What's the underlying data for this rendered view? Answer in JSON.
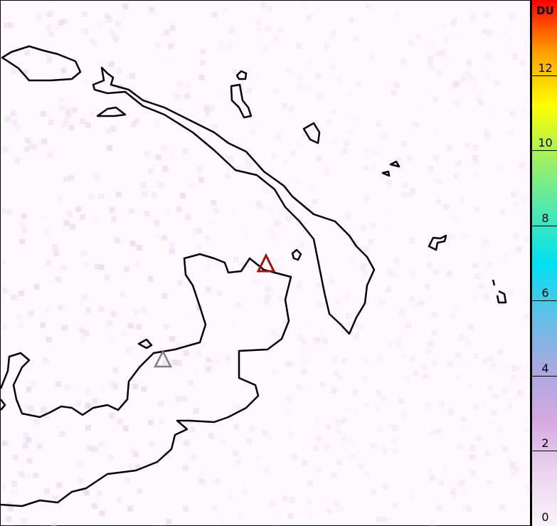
{
  "colorbar": {
    "unit": "DU",
    "min": 0,
    "max": 14,
    "ticks": [
      "0",
      "2",
      "4",
      "6",
      "8",
      "10",
      "12"
    ],
    "colors": [
      "#faf3fa",
      "#ead6ee",
      "#d6a8e0",
      "#a8a8e0",
      "#60c0e8",
      "#00e0f0",
      "#50e8b0",
      "#a0f060",
      "#ffff00",
      "#ffa000",
      "#ff0000"
    ]
  },
  "markers": [
    {
      "icon": "volcano-triangle-icon",
      "color": "#a01010"
    },
    {
      "icon": "volcano-triangle-icon",
      "color": "#808080"
    }
  ]
}
